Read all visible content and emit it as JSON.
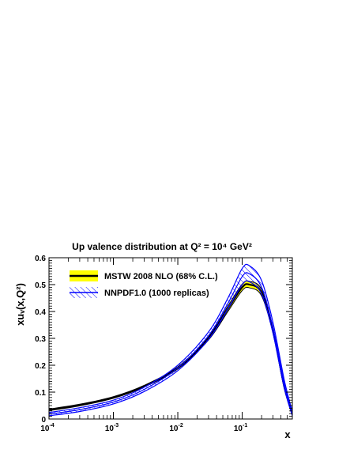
{
  "chart_data": {
    "type": "line",
    "title": "Up valence distribution at Q² = 10⁴ GeV²",
    "xlabel": "x",
    "ylabel": "xuᵥ(x,Q²)",
    "x_scale": "log",
    "xlim": [
      0.0001,
      0.6
    ],
    "ylim": [
      0,
      0.6
    ],
    "x_ticks": [
      {
        "value": 0.0001,
        "base": "10",
        "exp": "-4"
      },
      {
        "value": 0.001,
        "base": "10",
        "exp": "-3"
      },
      {
        "value": 0.01,
        "base": "10",
        "exp": "-2"
      },
      {
        "value": 0.1,
        "base": "10",
        "exp": "-1"
      }
    ],
    "y_ticks": [
      "0",
      "0.1",
      "0.2",
      "0.3",
      "0.4",
      "0.5",
      "0.6"
    ],
    "legend_position": "top-left",
    "series": [
      {
        "name": "MSTW 2008 NLO (68% C.L.)",
        "band_color": "#ffff00",
        "line_color": "#000000",
        "x": [
          0.0001,
          0.0003,
          0.001,
          0.003,
          0.01,
          0.03,
          0.06,
          0.1,
          0.13,
          0.2,
          0.3,
          0.45,
          0.6
        ],
        "central": [
          0.034,
          0.052,
          0.08,
          0.122,
          0.19,
          0.3,
          0.41,
          0.49,
          0.5,
          0.47,
          0.33,
          0.12,
          0.02
        ],
        "lower": [
          0.031,
          0.049,
          0.077,
          0.119,
          0.186,
          0.294,
          0.4,
          0.478,
          0.488,
          0.458,
          0.321,
          0.114,
          0.017
        ],
        "upper": [
          0.037,
          0.055,
          0.083,
          0.125,
          0.194,
          0.306,
          0.42,
          0.502,
          0.512,
          0.482,
          0.339,
          0.126,
          0.023
        ]
      },
      {
        "name": "NNPDF1.0 (1000 replicas)",
        "band_color": "#0000ff",
        "line_color": "#0000ff",
        "x": [
          0.0001,
          0.0003,
          0.001,
          0.003,
          0.01,
          0.03,
          0.06,
          0.1,
          0.13,
          0.2,
          0.3,
          0.45,
          0.6
        ],
        "central": [
          0.018,
          0.035,
          0.063,
          0.11,
          0.19,
          0.31,
          0.43,
          0.53,
          0.54,
          0.49,
          0.34,
          0.13,
          0.02
        ],
        "lower": [
          0.012,
          0.028,
          0.056,
          0.102,
          0.18,
          0.296,
          0.41,
          0.5,
          0.51,
          0.465,
          0.32,
          0.115,
          0.012
        ],
        "upper": [
          0.024,
          0.042,
          0.07,
          0.118,
          0.2,
          0.324,
          0.45,
          0.56,
          0.57,
          0.515,
          0.36,
          0.145,
          0.028
        ]
      }
    ]
  }
}
